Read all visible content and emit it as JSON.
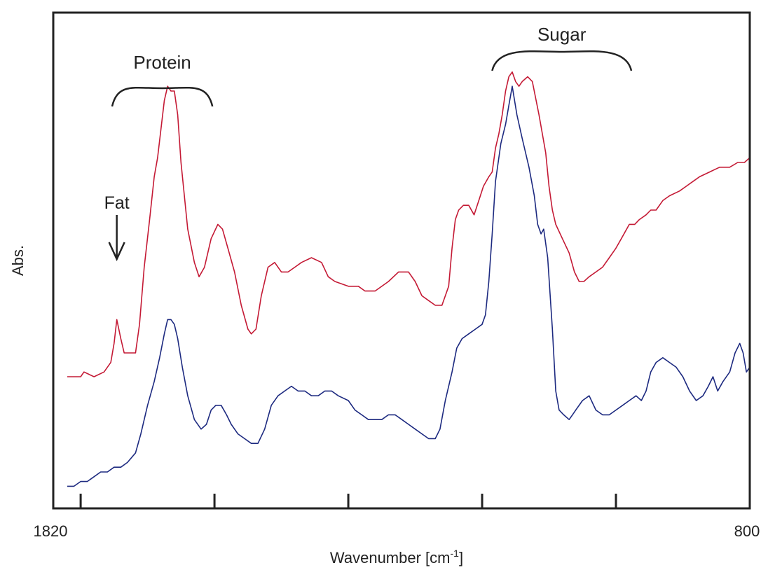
{
  "chart_data": {
    "type": "line",
    "xlabel": "Wavenumber [cm",
    "xlabel_sup": "-1",
    "xlabel_close": "]",
    "ylabel": "Abs.",
    "xlim": [
      1820,
      800
    ],
    "x_reversed": true,
    "x_tick_labels": [
      "1820",
      "800"
    ],
    "x_ticks": [
      1800,
      1600,
      1400,
      1200,
      1000
    ],
    "y_ticks_shown": false,
    "grid": false,
    "annotations": [
      {
        "text": "Fat",
        "kind": "arrow",
        "x": 1746
      },
      {
        "text": "Protein",
        "kind": "bracket",
        "x_from": 1753,
        "x_to": 1603
      },
      {
        "text": "Sugar",
        "kind": "bracket",
        "x_from": 1185,
        "x_to": 977
      }
    ],
    "series": [
      {
        "color": "#c41a35",
        "points": [
          [
            1820,
            0.25
          ],
          [
            1800,
            0.25
          ],
          [
            1795,
            0.26
          ],
          [
            1780,
            0.25
          ],
          [
            1765,
            0.26
          ],
          [
            1755,
            0.28
          ],
          [
            1750,
            0.32
          ],
          [
            1746,
            0.37
          ],
          [
            1740,
            0.33
          ],
          [
            1735,
            0.3
          ],
          [
            1725,
            0.3
          ],
          [
            1718,
            0.3
          ],
          [
            1712,
            0.36
          ],
          [
            1705,
            0.48
          ],
          [
            1697,
            0.58
          ],
          [
            1690,
            0.67
          ],
          [
            1685,
            0.71
          ],
          [
            1680,
            0.77
          ],
          [
            1675,
            0.83
          ],
          [
            1670,
            0.86
          ],
          [
            1665,
            0.85
          ],
          [
            1660,
            0.85
          ],
          [
            1655,
            0.8
          ],
          [
            1650,
            0.7
          ],
          [
            1640,
            0.56
          ],
          [
            1630,
            0.49
          ],
          [
            1623,
            0.46
          ],
          [
            1615,
            0.48
          ],
          [
            1605,
            0.54
          ],
          [
            1595,
            0.57
          ],
          [
            1588,
            0.56
          ],
          [
            1580,
            0.52
          ],
          [
            1570,
            0.47
          ],
          [
            1560,
            0.4
          ],
          [
            1550,
            0.35
          ],
          [
            1545,
            0.34
          ],
          [
            1538,
            0.35
          ],
          [
            1530,
            0.42
          ],
          [
            1520,
            0.48
          ],
          [
            1510,
            0.49
          ],
          [
            1500,
            0.47
          ],
          [
            1490,
            0.47
          ],
          [
            1480,
            0.48
          ],
          [
            1470,
            0.49
          ],
          [
            1455,
            0.5
          ],
          [
            1440,
            0.49
          ],
          [
            1430,
            0.46
          ],
          [
            1420,
            0.45
          ],
          [
            1400,
            0.44
          ],
          [
            1385,
            0.44
          ],
          [
            1375,
            0.43
          ],
          [
            1360,
            0.43
          ],
          [
            1340,
            0.45
          ],
          [
            1325,
            0.47
          ],
          [
            1310,
            0.47
          ],
          [
            1300,
            0.45
          ],
          [
            1290,
            0.42
          ],
          [
            1280,
            0.41
          ],
          [
            1270,
            0.4
          ],
          [
            1260,
            0.4
          ],
          [
            1250,
            0.44
          ],
          [
            1245,
            0.52
          ],
          [
            1240,
            0.58
          ],
          [
            1235,
            0.6
          ],
          [
            1228,
            0.61
          ],
          [
            1220,
            0.61
          ],
          [
            1212,
            0.59
          ],
          [
            1205,
            0.62
          ],
          [
            1198,
            0.65
          ],
          [
            1190,
            0.67
          ],
          [
            1185,
            0.68
          ],
          [
            1180,
            0.73
          ],
          [
            1175,
            0.76
          ],
          [
            1170,
            0.8
          ],
          [
            1165,
            0.85
          ],
          [
            1160,
            0.88
          ],
          [
            1155,
            0.89
          ],
          [
            1150,
            0.87
          ],
          [
            1145,
            0.86
          ],
          [
            1140,
            0.87
          ],
          [
            1132,
            0.88
          ],
          [
            1125,
            0.87
          ],
          [
            1115,
            0.8
          ],
          [
            1105,
            0.72
          ],
          [
            1100,
            0.65
          ],
          [
            1095,
            0.6
          ],
          [
            1090,
            0.57
          ],
          [
            1080,
            0.54
          ],
          [
            1070,
            0.51
          ],
          [
            1062,
            0.47
          ],
          [
            1055,
            0.45
          ],
          [
            1048,
            0.45
          ],
          [
            1040,
            0.46
          ],
          [
            1030,
            0.47
          ],
          [
            1020,
            0.48
          ],
          [
            1010,
            0.5
          ],
          [
            1000,
            0.52
          ],
          [
            992,
            0.54
          ],
          [
            980,
            0.57
          ],
          [
            972,
            0.57
          ],
          [
            965,
            0.58
          ],
          [
            955,
            0.59
          ],
          [
            948,
            0.6
          ],
          [
            940,
            0.6
          ],
          [
            930,
            0.62
          ],
          [
            920,
            0.63
          ],
          [
            905,
            0.64
          ],
          [
            895,
            0.65
          ],
          [
            885,
            0.66
          ],
          [
            875,
            0.67
          ],
          [
            860,
            0.68
          ],
          [
            845,
            0.69
          ],
          [
            830,
            0.69
          ],
          [
            818,
            0.7
          ],
          [
            808,
            0.7
          ],
          [
            800,
            0.71
          ]
        ]
      },
      {
        "color": "#1d2a80",
        "points": [
          [
            1820,
            0.02
          ],
          [
            1810,
            0.02
          ],
          [
            1800,
            0.03
          ],
          [
            1790,
            0.03
          ],
          [
            1780,
            0.04
          ],
          [
            1770,
            0.05
          ],
          [
            1760,
            0.05
          ],
          [
            1750,
            0.06
          ],
          [
            1740,
            0.06
          ],
          [
            1730,
            0.07
          ],
          [
            1718,
            0.09
          ],
          [
            1710,
            0.13
          ],
          [
            1700,
            0.19
          ],
          [
            1690,
            0.24
          ],
          [
            1682,
            0.29
          ],
          [
            1675,
            0.34
          ],
          [
            1670,
            0.37
          ],
          [
            1665,
            0.37
          ],
          [
            1660,
            0.36
          ],
          [
            1655,
            0.33
          ],
          [
            1648,
            0.27
          ],
          [
            1640,
            0.21
          ],
          [
            1630,
            0.16
          ],
          [
            1620,
            0.14
          ],
          [
            1612,
            0.15
          ],
          [
            1605,
            0.18
          ],
          [
            1598,
            0.19
          ],
          [
            1590,
            0.19
          ],
          [
            1582,
            0.17
          ],
          [
            1575,
            0.15
          ],
          [
            1565,
            0.13
          ],
          [
            1555,
            0.12
          ],
          [
            1545,
            0.11
          ],
          [
            1535,
            0.11
          ],
          [
            1525,
            0.14
          ],
          [
            1515,
            0.19
          ],
          [
            1505,
            0.21
          ],
          [
            1495,
            0.22
          ],
          [
            1485,
            0.23
          ],
          [
            1475,
            0.22
          ],
          [
            1465,
            0.22
          ],
          [
            1455,
            0.21
          ],
          [
            1445,
            0.21
          ],
          [
            1435,
            0.22
          ],
          [
            1425,
            0.22
          ],
          [
            1415,
            0.21
          ],
          [
            1400,
            0.2
          ],
          [
            1390,
            0.18
          ],
          [
            1380,
            0.17
          ],
          [
            1370,
            0.16
          ],
          [
            1360,
            0.16
          ],
          [
            1350,
            0.16
          ],
          [
            1340,
            0.17
          ],
          [
            1330,
            0.17
          ],
          [
            1320,
            0.16
          ],
          [
            1310,
            0.15
          ],
          [
            1300,
            0.14
          ],
          [
            1290,
            0.13
          ],
          [
            1280,
            0.12
          ],
          [
            1270,
            0.12
          ],
          [
            1263,
            0.14
          ],
          [
            1255,
            0.2
          ],
          [
            1245,
            0.26
          ],
          [
            1238,
            0.31
          ],
          [
            1230,
            0.33
          ],
          [
            1220,
            0.34
          ],
          [
            1210,
            0.35
          ],
          [
            1200,
            0.36
          ],
          [
            1195,
            0.38
          ],
          [
            1190,
            0.45
          ],
          [
            1185,
            0.55
          ],
          [
            1180,
            0.66
          ],
          [
            1172,
            0.74
          ],
          [
            1165,
            0.78
          ],
          [
            1160,
            0.82
          ],
          [
            1155,
            0.86
          ],
          [
            1148,
            0.8
          ],
          [
            1140,
            0.75
          ],
          [
            1130,
            0.69
          ],
          [
            1122,
            0.63
          ],
          [
            1117,
            0.57
          ],
          [
            1112,
            0.55
          ],
          [
            1108,
            0.56
          ],
          [
            1102,
            0.5
          ],
          [
            1095,
            0.35
          ],
          [
            1090,
            0.22
          ],
          [
            1085,
            0.18
          ],
          [
            1078,
            0.17
          ],
          [
            1070,
            0.16
          ],
          [
            1065,
            0.17
          ],
          [
            1060,
            0.18
          ],
          [
            1050,
            0.2
          ],
          [
            1040,
            0.21
          ],
          [
            1030,
            0.18
          ],
          [
            1020,
            0.17
          ],
          [
            1010,
            0.17
          ],
          [
            1000,
            0.18
          ],
          [
            990,
            0.19
          ],
          [
            980,
            0.2
          ],
          [
            970,
            0.21
          ],
          [
            962,
            0.2
          ],
          [
            955,
            0.22
          ],
          [
            948,
            0.26
          ],
          [
            940,
            0.28
          ],
          [
            930,
            0.29
          ],
          [
            920,
            0.28
          ],
          [
            910,
            0.27
          ],
          [
            900,
            0.25
          ],
          [
            890,
            0.22
          ],
          [
            880,
            0.2
          ],
          [
            870,
            0.21
          ],
          [
            862,
            0.23
          ],
          [
            855,
            0.25
          ],
          [
            848,
            0.22
          ],
          [
            840,
            0.24
          ],
          [
            830,
            0.26
          ],
          [
            822,
            0.3
          ],
          [
            815,
            0.32
          ],
          [
            810,
            0.3
          ],
          [
            805,
            0.26
          ],
          [
            800,
            0.27
          ]
        ]
      }
    ]
  }
}
